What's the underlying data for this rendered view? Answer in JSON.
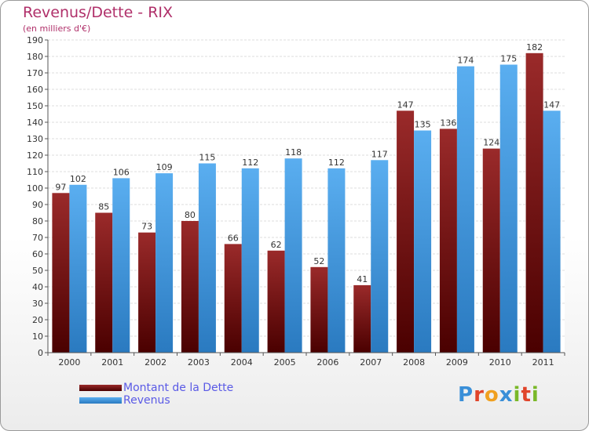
{
  "header": {
    "title": "Revenus/Dette - RIX",
    "subtitle": "(en milliers d'€)"
  },
  "logo": {
    "letters": [
      "P",
      "r",
      "o",
      "x",
      "i",
      "t",
      "i"
    ],
    "colors": [
      "#3a8fd8",
      "#e0442a",
      "#f0a020",
      "#3a8fd8",
      "#7ab828",
      "#e0442a",
      "#7ab828"
    ]
  },
  "colors": {
    "dette_top": "#9a2a2a",
    "dette_bottom": "#4a0000",
    "revenus_top": "#5aaef0",
    "revenus_bottom": "#2a7ac0",
    "title": "#b0306a",
    "legend_text": "#5a5ae6"
  },
  "chart_data": {
    "type": "bar",
    "title": "Revenus/Dette - RIX",
    "ylabel": "(en milliers d'€)",
    "xlabel": "",
    "ylim": [
      0,
      190
    ],
    "ytick_step": 10,
    "grid": true,
    "legend_position": "bottom-left",
    "categories": [
      "2000",
      "2001",
      "2002",
      "2003",
      "2004",
      "2005",
      "2006",
      "2007",
      "2008",
      "2009",
      "2010",
      "2011"
    ],
    "series": [
      {
        "name": "Montant de la Dette",
        "values": [
          97,
          85,
          73,
          80,
          66,
          62,
          52,
          41,
          147,
          136,
          124,
          182
        ]
      },
      {
        "name": "Revenus",
        "values": [
          102,
          106,
          109,
          115,
          112,
          118,
          112,
          117,
          135,
          174,
          175,
          147
        ]
      }
    ]
  }
}
